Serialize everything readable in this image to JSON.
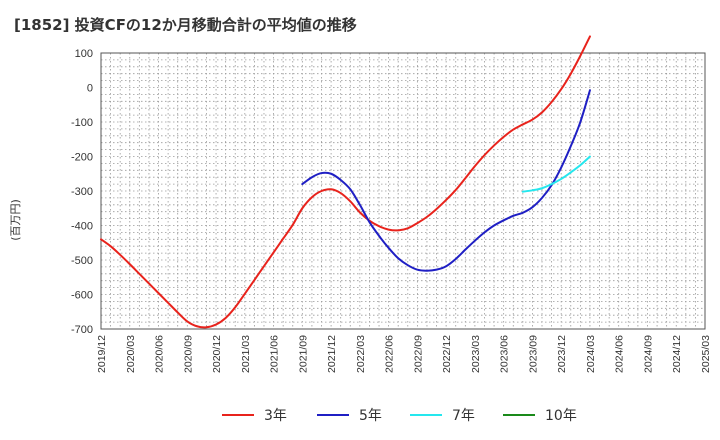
{
  "title": "[1852]  投資CFの12か月移動合計の平均値の推移",
  "chart_data": {
    "type": "line",
    "title": "[1852]  投資CFの12か月移動合計の平均値の推移",
    "ylabel": "(百万円)",
    "xlabel": "",
    "ylim": [
      -700,
      100
    ],
    "yticks": [
      100,
      0,
      -100,
      -200,
      -300,
      -400,
      -500,
      -600,
      -700
    ],
    "xticks": [
      "2019/12",
      "2020/03",
      "2020/06",
      "2020/09",
      "2020/12",
      "2021/03",
      "2021/06",
      "2021/09",
      "2021/12",
      "2022/03",
      "2022/06",
      "2022/09",
      "2022/12",
      "2023/03",
      "2023/06",
      "2023/09",
      "2023/12",
      "2024/03",
      "2024/06",
      "2024/09",
      "2024/12",
      "2025/03"
    ],
    "xrange": [
      "2019/12",
      "2025/03"
    ],
    "grid": true,
    "legend_position": "bottom",
    "series": [
      {
        "name": "3年",
        "color": "#e8231c",
        "x": [
          "2019/12",
          "2020/01",
          "2020/02",
          "2020/03",
          "2020/04",
          "2020/05",
          "2020/06",
          "2020/07",
          "2020/08",
          "2020/09",
          "2020/10",
          "2020/11",
          "2020/12",
          "2021/01",
          "2021/02",
          "2021/03",
          "2021/04",
          "2021/05",
          "2021/06",
          "2021/07",
          "2021/08",
          "2021/09",
          "2021/10",
          "2021/11",
          "2021/12",
          "2022/01",
          "2022/02",
          "2022/03",
          "2022/04",
          "2022/05",
          "2022/06",
          "2022/07",
          "2022/08",
          "2022/09",
          "2022/10",
          "2022/11",
          "2022/12",
          "2023/01",
          "2023/02",
          "2023/03",
          "2023/04",
          "2023/05",
          "2023/06",
          "2023/07",
          "2023/08",
          "2023/09",
          "2023/10",
          "2023/11",
          "2023/12",
          "2024/01",
          "2024/02",
          "2024/03"
        ],
        "values": [
          -440,
          -460,
          -485,
          -512,
          -540,
          -568,
          -596,
          -624,
          -652,
          -678,
          -692,
          -695,
          -687,
          -668,
          -637,
          -598,
          -558,
          -518,
          -478,
          -438,
          -398,
          -350,
          -318,
          -300,
          -295,
          -306,
          -330,
          -362,
          -386,
          -402,
          -412,
          -414,
          -408,
          -393,
          -375,
          -352,
          -326,
          -297,
          -263,
          -228,
          -196,
          -168,
          -143,
          -122,
          -107,
          -93,
          -72,
          -42,
          -5,
          40,
          92,
          148
        ]
      },
      {
        "name": "5年",
        "color": "#1f1fc4",
        "x": [
          "2021/09",
          "2021/10",
          "2021/11",
          "2021/12",
          "2022/01",
          "2022/02",
          "2022/03",
          "2022/04",
          "2022/05",
          "2022/06",
          "2022/07",
          "2022/08",
          "2022/09",
          "2022/10",
          "2022/11",
          "2022/12",
          "2023/01",
          "2023/02",
          "2023/03",
          "2023/04",
          "2023/05",
          "2023/06",
          "2023/07",
          "2023/08",
          "2023/09",
          "2023/10",
          "2023/11",
          "2023/12",
          "2024/01",
          "2024/02",
          "2024/03"
        ],
        "values": [
          -280,
          -260,
          -248,
          -250,
          -268,
          -295,
          -340,
          -390,
          -430,
          -465,
          -495,
          -515,
          -528,
          -531,
          -528,
          -518,
          -497,
          -470,
          -444,
          -420,
          -400,
          -385,
          -372,
          -363,
          -347,
          -320,
          -283,
          -232,
          -170,
          -100,
          -8
        ]
      },
      {
        "name": "7年",
        "color": "#25e7ee",
        "x": [
          "2023/08",
          "2023/09",
          "2023/10",
          "2023/11",
          "2023/12",
          "2024/01",
          "2024/02",
          "2024/03"
        ],
        "values": [
          -302,
          -298,
          -292,
          -280,
          -265,
          -246,
          -225,
          -200
        ]
      },
      {
        "name": "10年",
        "color": "#1a8a1a",
        "x": [],
        "values": []
      }
    ]
  }
}
